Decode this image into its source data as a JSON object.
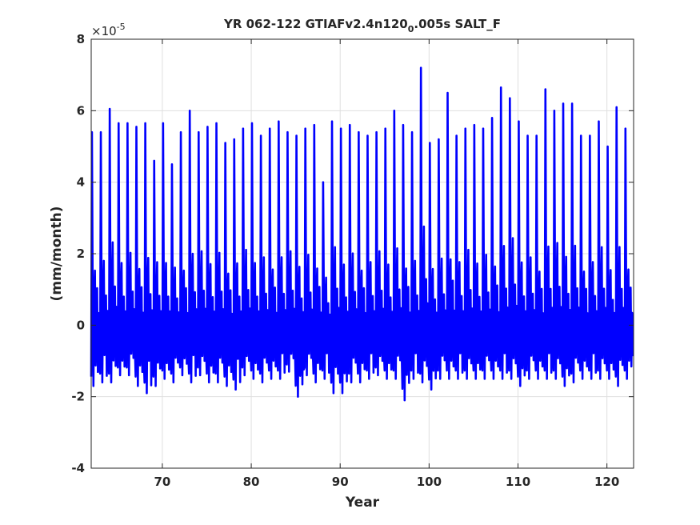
{
  "chart_data": {
    "type": "line",
    "title": "YR 062-122 GTIAFv2.4n120",
    "title_subscript": "0",
    "title_suffix": ".005s SALT_F",
    "xlabel": "Year",
    "ylabel": "(mm/month)",
    "y_exponent_base": "×10",
    "y_exponent_power": "-5",
    "xlim": [
      62,
      123
    ],
    "ylim": [
      -4,
      8
    ],
    "xticks": [
      70,
      80,
      90,
      100,
      110,
      120
    ],
    "yticks": [
      -4,
      -2,
      0,
      2,
      4,
      6,
      8
    ],
    "grid": true,
    "series_color": "#0000ff",
    "series": [
      {
        "x_start": 62,
        "x_step": 0.08333333333333333,
        "y_units": "1e-5 mm/month",
        "annual_cycle": [
          -1.1,
          5.4,
          1.0,
          -1.3,
          0.8,
          1.8,
          -0.8,
          0.2,
          0.9,
          -1.0,
          0.4,
          -0.7
        ],
        "annual_peaks": [
          5.4,
          5.4,
          6.05,
          5.65,
          5.65,
          5.55,
          5.65,
          4.6,
          5.65,
          4.5,
          5.4,
          6.0,
          5.4,
          5.55,
          5.65,
          5.1,
          5.2,
          5.5,
          5.65,
          5.3,
          5.5,
          5.7,
          5.4,
          5.3,
          5.5,
          5.6,
          4.0,
          5.7,
          5.5,
          5.6,
          5.4,
          5.3,
          5.4,
          5.5,
          6.0,
          5.6,
          5.4,
          7.2,
          5.1,
          5.2,
          6.5,
          5.3,
          5.5,
          5.6,
          5.5,
          5.8,
          6.65,
          6.35,
          5.7,
          5.3,
          5.3,
          6.6,
          6.0,
          6.2,
          6.2,
          5.3,
          5.3,
          5.7,
          5.0,
          6.1,
          5.5
        ],
        "annual_troughs": [
          -1.7,
          -1.6,
          -1.6,
          -1.4,
          -1.4,
          -1.7,
          -1.9,
          -1.7,
          -1.5,
          -1.6,
          -1.4,
          -1.6,
          -1.4,
          -1.6,
          -1.6,
          -1.7,
          -1.8,
          -1.4,
          -1.5,
          -1.6,
          -1.5,
          -1.5,
          -1.3,
          -2.0,
          -1.4,
          -1.6,
          -1.5,
          -1.9,
          -1.9,
          -1.6,
          -1.6,
          -1.5,
          -1.4,
          -1.5,
          -1.5,
          -2.1,
          -1.5,
          -1.6,
          -1.8,
          -1.5,
          -1.5,
          -1.5,
          -1.5,
          -1.5,
          -1.5,
          -1.5,
          -1.5,
          -1.5,
          -1.7,
          -1.5,
          -1.5,
          -1.5,
          -1.5,
          -1.7,
          -1.6,
          -1.5,
          -1.5,
          -1.5,
          -1.5,
          -1.7,
          -1.5
        ]
      }
    ]
  }
}
